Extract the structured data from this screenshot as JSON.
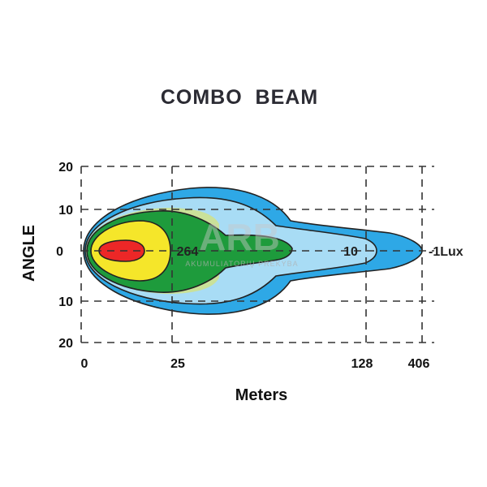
{
  "chart_data": {
    "type": "beam-pattern",
    "title": "COMBO  BEAM",
    "xlabel": "Meters",
    "ylabel": "ANGLE",
    "x_ticks": [
      "0",
      "25",
      "128",
      "406"
    ],
    "y_ticks": [
      {
        "label": "20",
        "angle": 20
      },
      {
        "label": "10",
        "angle": 10
      },
      {
        "label": "0",
        "angle": 0
      },
      {
        "label": "10",
        "angle": -10
      },
      {
        "label": "20",
        "angle": -20
      }
    ],
    "zones": [
      {
        "name": "1 Lux",
        "color": "#2ea8e6",
        "reach_m": 406
      },
      {
        "name": "10 Lux",
        "color": "#a8dcf5",
        "reach_m": 128
      },
      {
        "name": "264 Lux",
        "color": "#1e9b3c"
      },
      {
        "name": "yellow zone",
        "color": "#f5e62a"
      },
      {
        "name": "red zone",
        "color": "#ec2727"
      }
    ],
    "labels": {
      "lux_264": "264",
      "lux_10": "10",
      "lux_1": "-1Lux"
    },
    "watermark": "ARB",
    "watermark_sub": "AKUMULIATORIŲ PREKYBA"
  }
}
